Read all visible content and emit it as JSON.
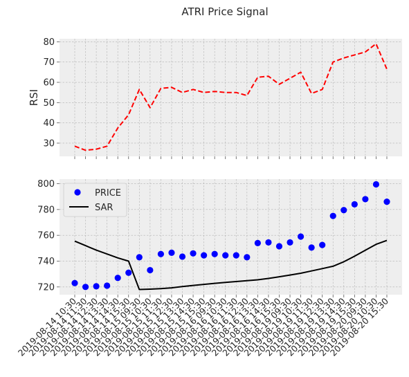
{
  "title": "ATRI Price Signal",
  "chart_data": [
    {
      "type": "line",
      "panel": "rsi",
      "ylabel": "RSI",
      "ylim": [
        23.5,
        81.5
      ],
      "yticks": [
        30,
        40,
        50,
        60,
        70,
        80
      ],
      "grid": true,
      "series": [
        {
          "name": "RSI",
          "color": "#ff0000",
          "style": "dashed",
          "values": [
            28.5,
            26.5,
            27,
            28.5,
            37.5,
            44,
            56.5,
            47.5,
            57,
            57.5,
            55,
            56.5,
            55,
            55.5,
            55,
            55,
            53.5,
            62.5,
            63,
            59,
            62,
            65,
            54.5,
            56.5,
            70,
            72,
            73.5,
            75,
            79,
            66.5
          ]
        }
      ]
    },
    {
      "type": "scatter",
      "panel": "price",
      "ylim": [
        714,
        803.5
      ],
      "yticks": [
        720,
        740,
        760,
        780,
        800
      ],
      "grid": true,
      "legend_position": "top-left",
      "categories": [
        "2019-08-14 10:30",
        "2019-08-14 11:30",
        "2019-08-14 12:30",
        "2019-08-14 13:30",
        "2019-08-14 14:30",
        "2019-08-14 15:30",
        "2019-08-15 09:30",
        "2019-08-15 10:30",
        "2019-08-15 11:30",
        "2019-08-15 12:30",
        "2019-08-15 13:30",
        "2019-08-15 14:30",
        "2019-08-15 15:30",
        "2019-08-16 09:30",
        "2019-08-16 10:30",
        "2019-08-16 11:30",
        "2019-08-16 12:30",
        "2019-08-16 13:30",
        "2019-08-16 14:30",
        "2019-08-16 15:30",
        "2019-08-19 09:30",
        "2019-08-19 10:30",
        "2019-08-19 11:30",
        "2019-08-19 12:30",
        "2019-08-19 13:30",
        "2019-08-19 14:30",
        "2019-08-19 15:30",
        "2019-08-20 09:30",
        "2019-08-20 10:30",
        "2019-08-20 15:30"
      ],
      "series": [
        {
          "name": "PRICE",
          "color": "#0000ff",
          "marker": "circle",
          "values": [
            723,
            720,
            720.5,
            721,
            727,
            731,
            743,
            733,
            745.5,
            746.5,
            743.5,
            746,
            744.5,
            745.5,
            744.5,
            744.5,
            743,
            754,
            754.5,
            751.5,
            754.5,
            759,
            750.5,
            752.5,
            775,
            779.5,
            784,
            788,
            799.5,
            786
          ]
        },
        {
          "name": "SAR",
          "color": "#000000",
          "style": "solid",
          "values": [
            755.5,
            752,
            748.5,
            745.5,
            742.5,
            740,
            718,
            718.3,
            718.7,
            719.3,
            720.3,
            721.2,
            722,
            722.8,
            723.5,
            724.2,
            724.8,
            725.5,
            726.6,
            727.9,
            729.2,
            730.6,
            732.4,
            734.2,
            736,
            739.5,
            743.8,
            748.4,
            753,
            756
          ]
        }
      ]
    }
  ]
}
